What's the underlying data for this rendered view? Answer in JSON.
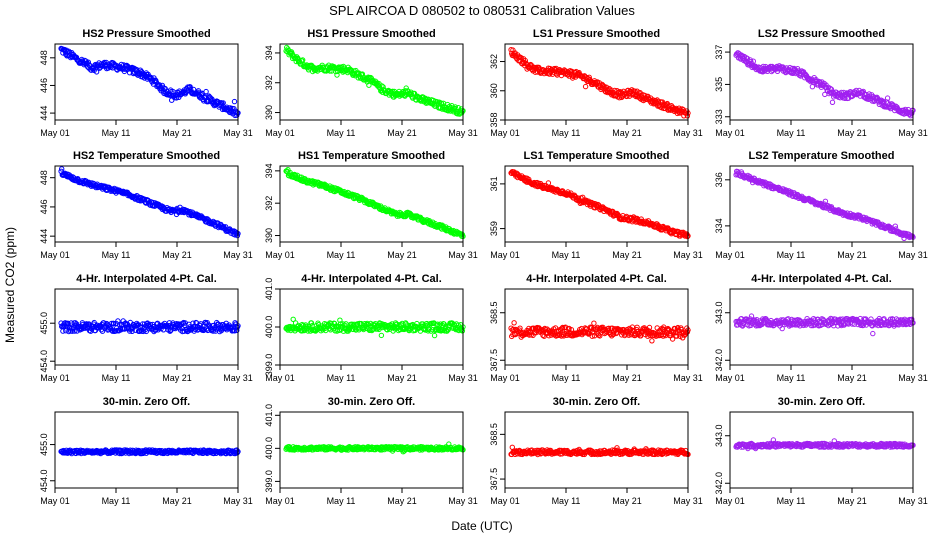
{
  "page_title": "SPL   AIRCOA D   080502 to 080531   Calibration Values",
  "x_axis_label": "Date (UTC)",
  "y_axis_label": "Measured CO2 (ppm)",
  "x_tick_labels": [
    "May 01",
    "May 11",
    "May 21",
    "May 31"
  ],
  "series_colors": {
    "HS2": "#0000ff",
    "HS1": "#00ff00",
    "LS1": "#ff0000",
    "LS2": "#a020f0"
  },
  "chart_data": [
    {
      "type": "scatter",
      "title": "HS2 Pressure Smoothed",
      "series": "HS2",
      "xlim": [
        1,
        31
      ],
      "ylim": [
        443.5,
        449.0
      ],
      "yticks": [
        444,
        446,
        448
      ],
      "ytick_labels": [
        "444",
        "446",
        "448"
      ],
      "trend": [
        [
          2,
          448.6
        ],
        [
          5,
          447.8
        ],
        [
          7,
          447.3
        ],
        [
          9,
          447.5
        ],
        [
          12,
          447.3
        ],
        [
          15,
          446.9
        ],
        [
          17,
          446.4
        ],
        [
          19,
          445.6
        ],
        [
          21,
          445.3
        ],
        [
          23,
          445.7
        ],
        [
          25,
          445.3
        ],
        [
          27,
          444.8
        ],
        [
          29,
          444.4
        ],
        [
          31,
          443.9
        ]
      ],
      "noise": 0.25
    },
    {
      "type": "scatter",
      "title": "HS1 Pressure Smoothed",
      "series": "HS1",
      "xlim": [
        1,
        31
      ],
      "ylim": [
        389.5,
        394.6
      ],
      "yticks": [
        390,
        392,
        394
      ],
      "ytick_labels": [
        "390",
        "392",
        "394"
      ],
      "trend": [
        [
          2,
          394.2
        ],
        [
          4,
          393.5
        ],
        [
          6,
          393.0
        ],
        [
          9,
          393.0
        ],
        [
          12,
          392.9
        ],
        [
          14,
          392.5
        ],
        [
          16,
          392.1
        ],
        [
          18,
          391.5
        ],
        [
          20,
          391.2
        ],
        [
          22,
          391.3
        ],
        [
          24,
          390.9
        ],
        [
          27,
          390.5
        ],
        [
          29,
          390.3
        ],
        [
          31,
          390.0
        ]
      ],
      "noise": 0.22
    },
    {
      "type": "scatter",
      "title": "LS1 Pressure Smoothed",
      "series": "LS1",
      "xlim": [
        1,
        31
      ],
      "ylim": [
        358.0,
        363.2
      ],
      "yticks": [
        358,
        360,
        362
      ],
      "ytick_labels": [
        "358",
        "360",
        "362"
      ],
      "trend": [
        [
          2,
          362.7
        ],
        [
          4,
          362.0
        ],
        [
          6,
          361.4
        ],
        [
          9,
          361.3
        ],
        [
          12,
          361.2
        ],
        [
          14,
          360.9
        ],
        [
          16,
          360.5
        ],
        [
          18,
          360.0
        ],
        [
          20,
          359.7
        ],
        [
          22,
          359.9
        ],
        [
          24,
          359.5
        ],
        [
          27,
          359.0
        ],
        [
          29,
          358.7
        ],
        [
          31,
          358.4
        ]
      ],
      "noise": 0.22
    },
    {
      "type": "scatter",
      "title": "LS2 Pressure Smoothed",
      "series": "LS2",
      "xlim": [
        1,
        31
      ],
      "ylim": [
        332.8,
        337.5
      ],
      "yticks": [
        333,
        335,
        337
      ],
      "ytick_labels": [
        "333",
        "335",
        "337"
      ],
      "trend": [
        [
          2,
          336.9
        ],
        [
          4,
          336.4
        ],
        [
          6,
          335.9
        ],
        [
          9,
          336.0
        ],
        [
          12,
          335.8
        ],
        [
          14,
          335.4
        ],
        [
          16,
          335.0
        ],
        [
          18,
          334.4
        ],
        [
          20,
          334.3
        ],
        [
          22,
          334.5
        ],
        [
          24,
          334.2
        ],
        [
          27,
          333.7
        ],
        [
          29,
          333.4
        ],
        [
          31,
          333.2
        ]
      ],
      "noise": 0.2
    },
    {
      "type": "scatter",
      "title": "HS2 Temperature Smoothed",
      "series": "HS2",
      "xlim": [
        1,
        31
      ],
      "ylim": [
        443.6,
        448.8
      ],
      "yticks": [
        444,
        446,
        448
      ],
      "ytick_labels": [
        "444",
        "446",
        "448"
      ],
      "trend": [
        [
          2,
          448.3
        ],
        [
          5,
          447.8
        ],
        [
          8,
          447.4
        ],
        [
          11,
          447.1
        ],
        [
          14,
          446.7
        ],
        [
          17,
          446.2
        ],
        [
          20,
          445.7
        ],
        [
          22,
          445.8
        ],
        [
          24,
          445.4
        ],
        [
          27,
          444.9
        ],
        [
          29,
          444.5
        ],
        [
          31,
          444.1
        ]
      ],
      "noise": 0.15
    },
    {
      "type": "scatter",
      "title": "HS1 Temperature Smoothed",
      "series": "HS1",
      "xlim": [
        1,
        31
      ],
      "ylim": [
        389.6,
        394.3
      ],
      "yticks": [
        390,
        392,
        394
      ],
      "ytick_labels": [
        "390",
        "392",
        "394"
      ],
      "trend": [
        [
          2,
          393.9
        ],
        [
          5,
          393.4
        ],
        [
          8,
          393.1
        ],
        [
          11,
          392.7
        ],
        [
          14,
          392.3
        ],
        [
          17,
          391.8
        ],
        [
          20,
          391.3
        ],
        [
          22,
          391.3
        ],
        [
          24,
          391.0
        ],
        [
          27,
          390.6
        ],
        [
          29,
          390.3
        ],
        [
          31,
          390.0
        ]
      ],
      "noise": 0.13
    },
    {
      "type": "scatter",
      "title": "LS1 Temperature Smoothed",
      "series": "LS1",
      "xlim": [
        1,
        31
      ],
      "ylim": [
        358.4,
        361.8
      ],
      "yticks": [
        359,
        361
      ],
      "ytick_labels": [
        "359",
        "361"
      ],
      "trend": [
        [
          2,
          361.5
        ],
        [
          5,
          361.1
        ],
        [
          8,
          360.8
        ],
        [
          11,
          360.6
        ],
        [
          14,
          360.2
        ],
        [
          17,
          359.9
        ],
        [
          20,
          359.5
        ],
        [
          22,
          359.4
        ],
        [
          24,
          359.3
        ],
        [
          27,
          359.0
        ],
        [
          29,
          358.8
        ],
        [
          31,
          358.7
        ]
      ],
      "noise": 0.1
    },
    {
      "type": "scatter",
      "title": "LS2 Temperature Smoothed",
      "series": "LS2",
      "xlim": [
        1,
        31
      ],
      "ylim": [
        333.3,
        336.6
      ],
      "yticks": [
        334,
        336
      ],
      "ytick_labels": [
        "334",
        "336"
      ],
      "trend": [
        [
          2,
          336.3
        ],
        [
          5,
          336.0
        ],
        [
          8,
          335.7
        ],
        [
          11,
          335.4
        ],
        [
          14,
          335.1
        ],
        [
          17,
          334.8
        ],
        [
          20,
          334.5
        ],
        [
          22,
          334.4
        ],
        [
          24,
          334.2
        ],
        [
          27,
          333.9
        ],
        [
          29,
          333.7
        ],
        [
          31,
          333.5
        ]
      ],
      "noise": 0.09
    },
    {
      "type": "scatter",
      "title": "4-Hr. Interpolated 4-Pt. Cal.",
      "series": "HS2",
      "xlim": [
        1,
        31
      ],
      "ylim": [
        453.9,
        455.9
      ],
      "yticks": [
        454.0,
        455.0
      ],
      "ytick_labels": [
        "454.0",
        "455.0"
      ],
      "trend": [
        [
          2,
          454.9
        ],
        [
          31,
          454.9
        ]
      ],
      "noise": 0.12
    },
    {
      "type": "scatter",
      "title": "4-Hr. Interpolated 4-Pt. Cal.",
      "series": "HS1",
      "xlim": [
        1,
        31
      ],
      "ylim": [
        399.0,
        401.0
      ],
      "yticks": [
        399.0,
        400.0,
        401.0
      ],
      "ytick_labels": [
        "399.0",
        "400.0",
        "401.0"
      ],
      "trend": [
        [
          2,
          400.0
        ],
        [
          31,
          400.0
        ]
      ],
      "noise": 0.11
    },
    {
      "type": "scatter",
      "title": "4-Hr. Interpolated 4-Pt. Cal.",
      "series": "LS1",
      "xlim": [
        1,
        31
      ],
      "ylim": [
        367.4,
        369.0
      ],
      "yticks": [
        367.5,
        368.5
      ],
      "ytick_labels": [
        "367.5",
        "368.5"
      ],
      "trend": [
        [
          2,
          368.1
        ],
        [
          31,
          368.1
        ]
      ],
      "noise": 0.1
    },
    {
      "type": "scatter",
      "title": "4-Hr. Interpolated 4-Pt. Cal.",
      "series": "LS2",
      "xlim": [
        1,
        31
      ],
      "ylim": [
        341.9,
        343.5
      ],
      "yticks": [
        342.0,
        343.0
      ],
      "ytick_labels": [
        "342.0",
        "343.0"
      ],
      "trend": [
        [
          2,
          342.8
        ],
        [
          31,
          342.8
        ]
      ],
      "noise": 0.08
    },
    {
      "type": "scatter",
      "title": "30-min. Zero Off.",
      "series": "HS2",
      "xlim": [
        1,
        31
      ],
      "ylim": [
        453.8,
        455.9
      ],
      "yticks": [
        454.0,
        455.0
      ],
      "ytick_labels": [
        "454.0",
        "455.0"
      ],
      "trend": [
        [
          2,
          454.8
        ],
        [
          31,
          454.8
        ]
      ],
      "noise": 0.05
    },
    {
      "type": "scatter",
      "title": "30-min. Zero Off.",
      "series": "HS1",
      "xlim": [
        1,
        31
      ],
      "ylim": [
        398.8,
        401.1
      ],
      "yticks": [
        399.0,
        400.0,
        401.0
      ],
      "ytick_labels": [
        "399.0",
        "400.0",
        "401.0"
      ],
      "trend": [
        [
          2,
          400.0
        ],
        [
          31,
          400.0
        ]
      ],
      "noise": 0.05
    },
    {
      "type": "scatter",
      "title": "30-min. Zero Off.",
      "series": "LS1",
      "xlim": [
        1,
        31
      ],
      "ylim": [
        367.3,
        369.0
      ],
      "yticks": [
        367.5,
        368.5
      ],
      "ytick_labels": [
        "367.5",
        "368.5"
      ],
      "trend": [
        [
          2,
          368.1
        ],
        [
          31,
          368.1
        ]
      ],
      "noise": 0.05
    },
    {
      "type": "scatter",
      "title": "30-min. Zero Off.",
      "series": "LS2",
      "xlim": [
        1,
        31
      ],
      "ylim": [
        341.9,
        343.5
      ],
      "yticks": [
        342.0,
        343.0
      ],
      "ytick_labels": [
        "342.0",
        "343.0"
      ],
      "trend": [
        [
          2,
          342.8
        ],
        [
          31,
          342.8
        ]
      ],
      "noise": 0.04
    }
  ]
}
